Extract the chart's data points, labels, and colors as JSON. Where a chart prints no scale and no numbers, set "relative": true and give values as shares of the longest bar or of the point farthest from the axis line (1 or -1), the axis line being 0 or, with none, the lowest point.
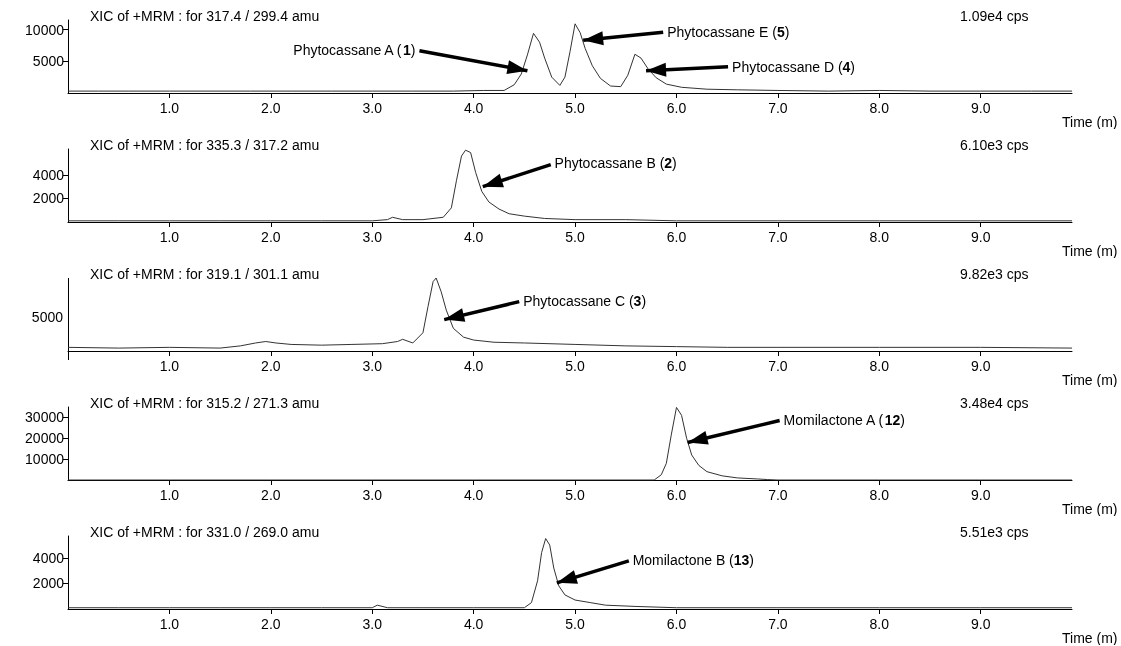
{
  "chart_data": [
    {
      "type": "line",
      "title": "XIC of +MRM : for 317.4 / 299.4 amu",
      "subtitle": "1.09e4 cps",
      "xlabel": "Time (m)",
      "color": "#333333",
      "x": [
        0,
        0.3,
        0.6,
        1,
        1.4,
        1.8,
        2.2,
        2.6,
        3,
        3.4,
        3.8,
        4.1,
        4.3,
        4.4,
        4.47,
        4.53,
        4.59,
        4.65,
        4.7,
        4.77,
        4.85,
        4.9,
        4.95,
        5,
        5.05,
        5.1,
        5.17,
        5.25,
        5.35,
        5.45,
        5.52,
        5.59,
        5.65,
        5.72,
        5.8,
        5.9,
        6.05,
        6.3,
        6.6,
        7,
        7.5,
        8,
        8.5,
        9,
        9.5,
        9.9
      ],
      "values": [
        300,
        300,
        300,
        300,
        300,
        300,
        300,
        300,
        300,
        300,
        300,
        400,
        400,
        1300,
        3000,
        6000,
        9400,
        8000,
        5500,
        2500,
        1200,
        2500,
        6500,
        10900,
        9500,
        7000,
        4300,
        2300,
        1100,
        1000,
        2800,
        6100,
        5500,
        3800,
        2400,
        1400,
        900,
        600,
        500,
        400,
        300,
        400,
        300,
        300,
        300,
        300
      ],
      "xlim": [
        0,
        9.9
      ],
      "xticks": [
        {
          "value": 1,
          "label": "1.0"
        },
        {
          "value": 2,
          "label": "2.0"
        },
        {
          "value": 3,
          "label": "3.0"
        },
        {
          "value": 4,
          "label": "4.0"
        },
        {
          "value": 5,
          "label": "5.0"
        },
        {
          "value": 6,
          "label": "6.0"
        },
        {
          "value": 7,
          "label": "7.0"
        },
        {
          "value": 8,
          "label": "8.0"
        },
        {
          "value": 9,
          "label": "9.0"
        }
      ],
      "ylim": [
        0,
        11500
      ],
      "yticks": [
        5000,
        10000
      ],
      "annotations": [
        {
          "text": "Phytocassane A (1)",
          "x": 4.53,
          "y": 3500
        },
        {
          "text": "Phytocassane E (5)",
          "x": 5.08,
          "y": 8300
        },
        {
          "text": "Phytocassane D (4)",
          "x": 5.7,
          "y": 3500
        }
      ]
    },
    {
      "type": "line",
      "title": "XIC of +MRM : for 335.3 / 317.2 amu",
      "subtitle": "6.10e3 cps",
      "xlabel": "Time (m)",
      "color": "#333333",
      "x": [
        0,
        0.5,
        1,
        1.5,
        2,
        2.5,
        3,
        3.15,
        3.2,
        3.3,
        3.5,
        3.7,
        3.78,
        3.83,
        3.88,
        3.92,
        3.97,
        4.02,
        4.08,
        4.15,
        4.25,
        4.35,
        4.5,
        4.7,
        5,
        5.5,
        6,
        7,
        8,
        9,
        9.9
      ],
      "values": [
        100,
        100,
        100,
        100,
        100,
        100,
        100,
        200,
        400,
        200,
        200,
        400,
        1200,
        3500,
        5600,
        6100,
        5900,
        4200,
        2600,
        1700,
        1100,
        700,
        500,
        300,
        200,
        200,
        100,
        100,
        100,
        100,
        100
      ],
      "xlim": [
        0,
        9.9
      ],
      "xticks": [
        {
          "value": 1,
          "label": "1.0"
        },
        {
          "value": 2,
          "label": "2.0"
        },
        {
          "value": 3,
          "label": "3.0"
        },
        {
          "value": 4,
          "label": "4.0"
        },
        {
          "value": 5,
          "label": "5.0"
        },
        {
          "value": 6,
          "label": "6.0"
        },
        {
          "value": 7,
          "label": "7.0"
        },
        {
          "value": 8,
          "label": "8.0"
        },
        {
          "value": 9,
          "label": "9.0"
        }
      ],
      "ylim": [
        0,
        6200
      ],
      "yticks": [
        2000,
        4000
      ],
      "annotations": [
        {
          "text": "Phytocassane B (2)",
          "x": 4.09,
          "y": 3000
        }
      ]
    },
    {
      "type": "line",
      "title": "XIC of +MRM : for 319.1 / 301.1 amu",
      "subtitle": "9.82e3 cps",
      "xlabel": "Time (m)",
      "color": "#333333",
      "x": [
        0,
        0.5,
        1,
        1.5,
        1.7,
        1.85,
        1.95,
        2.05,
        2.2,
        2.5,
        2.8,
        3.1,
        3.25,
        3.3,
        3.4,
        3.5,
        3.55,
        3.6,
        3.63,
        3.68,
        3.73,
        3.8,
        3.9,
        4,
        4.2,
        4.5,
        5,
        5.5,
        6,
        6.5,
        7,
        8,
        9,
        9.9
      ],
      "values": [
        0.05,
        0.04,
        0.05,
        0.04,
        0.07,
        0.11,
        0.13,
        0.11,
        0.09,
        0.08,
        0.09,
        0.1,
        0.13,
        0.16,
        0.11,
        0.25,
        0.61,
        0.95,
        1,
        0.81,
        0.56,
        0.31,
        0.19,
        0.15,
        0.12,
        0.11,
        0.09,
        0.07,
        0.06,
        0.05,
        0.05,
        0.05,
        0.05,
        0.04
      ],
      "relative": true,
      "xlim": [
        0,
        9.9
      ],
      "xticks": [
        {
          "value": 1,
          "label": "1.0"
        },
        {
          "value": 2,
          "label": "2.0"
        },
        {
          "value": 3,
          "label": "3.0"
        },
        {
          "value": 4,
          "label": "4.0"
        },
        {
          "value": 5,
          "label": "5.0"
        },
        {
          "value": 6,
          "label": "6.0"
        },
        {
          "value": 7,
          "label": "7.0"
        },
        {
          "value": 8,
          "label": "8.0"
        },
        {
          "value": 9,
          "label": "9.0"
        }
      ],
      "annotations": [
        {
          "text": "Phytocassane C (3)",
          "x": 3.71,
          "y": 0.43
        },
        "5000"
      ]
    },
    {
      "type": "line",
      "title": "XIC of +MRM : for 315.2 / 271.3 amu",
      "subtitle": "3.48e4 cps",
      "xlabel": "Time (m)",
      "color": "#333333",
      "x": [
        0,
        1,
        2,
        3,
        4,
        5,
        5.78,
        5.85,
        5.9,
        5.95,
        6,
        6.05,
        6.1,
        6.15,
        6.22,
        6.3,
        6.45,
        6.6,
        6.8,
        6.9,
        7,
        8,
        9,
        9.9
      ],
      "values": [
        0,
        0,
        0,
        0,
        0,
        0,
        0,
        2500,
        8000,
        22000,
        34800,
        31000,
        20000,
        12000,
        7000,
        4000,
        2000,
        1000,
        500,
        200,
        0,
        0,
        0,
        0
      ],
      "xlim": [
        0,
        9.9
      ],
      "xticks": [
        {
          "value": 1,
          "label": "1.0"
        },
        {
          "value": 2,
          "label": "2.0"
        },
        {
          "value": 3,
          "label": "3.0"
        },
        {
          "value": 4,
          "label": "4.0"
        },
        {
          "value": 5,
          "label": "5.0"
        },
        {
          "value": 6,
          "label": "6.0"
        },
        {
          "value": 7,
          "label": "7.0"
        },
        {
          "value": 8,
          "label": "8.0"
        },
        {
          "value": 9,
          "label": "9.0"
        }
      ],
      "ylim": [
        0,
        35000
      ],
      "yticks": [
        10000,
        20000,
        30000
      ],
      "annotations": [
        {
          "text": "Momilactone A (12)",
          "x": 6.11,
          "y": 18000
        }
      ]
    },
    {
      "type": "line",
      "title": "XIC of +MRM : for 331.0 / 269.0 amu",
      "subtitle": "5.51e3 cps",
      "xlabel": "Time (m)",
      "color": "#333333",
      "x": [
        0,
        0.5,
        1,
        1.5,
        2,
        2.5,
        3,
        3.05,
        3.15,
        3.5,
        4,
        4.5,
        4.57,
        4.63,
        4.67,
        4.71,
        4.75,
        4.79,
        4.84,
        4.9,
        5,
        5.15,
        5.3,
        5.6,
        6,
        7,
        8,
        9,
        9.9
      ],
      "values": [
        100,
        100,
        100,
        100,
        100,
        100,
        100,
        300,
        100,
        100,
        100,
        100,
        500,
        2200,
        4400,
        5500,
        5000,
        3200,
        1800,
        1100,
        700,
        500,
        300,
        200,
        100,
        100,
        100,
        100,
        100
      ],
      "xlim": [
        0,
        9.9
      ],
      "xticks": [
        {
          "value": 1,
          "label": "1.0"
        },
        {
          "value": 2,
          "label": "2.0"
        },
        {
          "value": 3,
          "label": "3.0"
        },
        {
          "value": 4,
          "label": "4.0"
        },
        {
          "value": 5,
          "label": "5.0"
        },
        {
          "value": 6,
          "label": "6.0"
        },
        {
          "value": 7,
          "label": "7.0"
        },
        {
          "value": 8,
          "label": "8.0"
        },
        {
          "value": 9,
          "label": "9.0"
        }
      ],
      "ylim": [
        0,
        5700
      ],
      "yticks": [
        2000,
        4000
      ],
      "annotations": [
        {
          "text": "Momilactone B (13)",
          "x": 4.82,
          "y": 2040
        }
      ]
    }
  ]
}
